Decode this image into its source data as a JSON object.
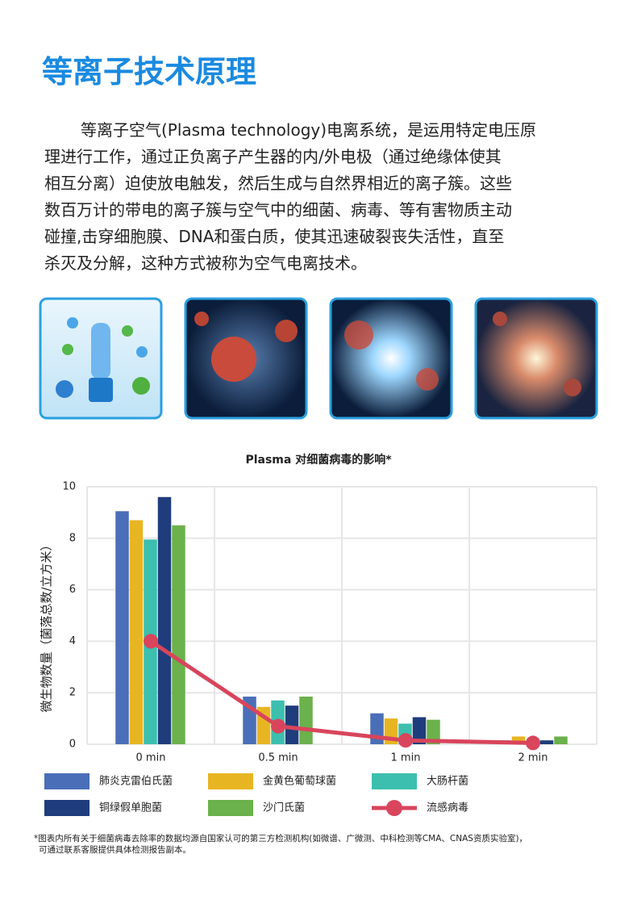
{
  "header": {
    "title": "等离子技术原理"
  },
  "body": {
    "lines": [
      "等离子空气(Plasma technology)电离系统，是运用特定电压原",
      "理进行工作，通过正负离子产生器的内/外电极（通过绝缘体使其",
      "相互分离）迫使放电触发，然后生成与自然界相近的离子簇。这些",
      "数百万计的带电的离子簇与空气中的细菌、病毒、等有害物质主动",
      "碰撞,击穿细胞膜、DNA和蛋白质，使其迅速破裂丧失活性，直至",
      "杀灭及分解，这种方式被称为空气电离技术。"
    ]
  },
  "chart_data": {
    "type": "bar",
    "title": "Plasma 对细菌病毒的影响*",
    "y_label": "微生物数量（菌落总数/立方米）",
    "categories": [
      "0 min",
      "0.5 min",
      "1 min",
      "2 min"
    ],
    "ylim": [
      0,
      10
    ],
    "yticks": [
      0,
      2,
      4,
      6,
      8,
      10
    ],
    "grid": true,
    "series": [
      {
        "name": "肺炎克雷伯氏菌",
        "color": "#4a6fb8",
        "values": [
          9.05,
          1.85,
          1.2,
          0.15
        ]
      },
      {
        "name": "金黄色葡萄球菌",
        "color": "#e8b522",
        "values": [
          8.7,
          1.45,
          1.0,
          0.3
        ]
      },
      {
        "name": "大肠杆菌",
        "color": "#3cbfae",
        "values": [
          7.95,
          1.7,
          0.8,
          0.1
        ]
      },
      {
        "name": "铜绿假单胞菌",
        "color": "#1f3d7c",
        "values": [
          9.6,
          1.5,
          1.05,
          0.15
        ]
      },
      {
        "name": "沙门氏菌",
        "color": "#6bb14c",
        "values": [
          8.5,
          1.85,
          0.95,
          0.3
        ]
      },
      {
        "name": "流感病毒",
        "color": "#d8455c",
        "type": "line",
        "values": [
          4.0,
          0.7,
          0.15,
          0.05
        ]
      }
    ]
  },
  "footnote": {
    "lines": [
      "*图表内所有关于细菌病毒去除率的数据均源自国家认可的第三方检测机构(如微谱、广微测、中科检测等CMA、CNAS资质实验室)，",
      "可通过联系客服提供具体检测报告副本。"
    ]
  }
}
